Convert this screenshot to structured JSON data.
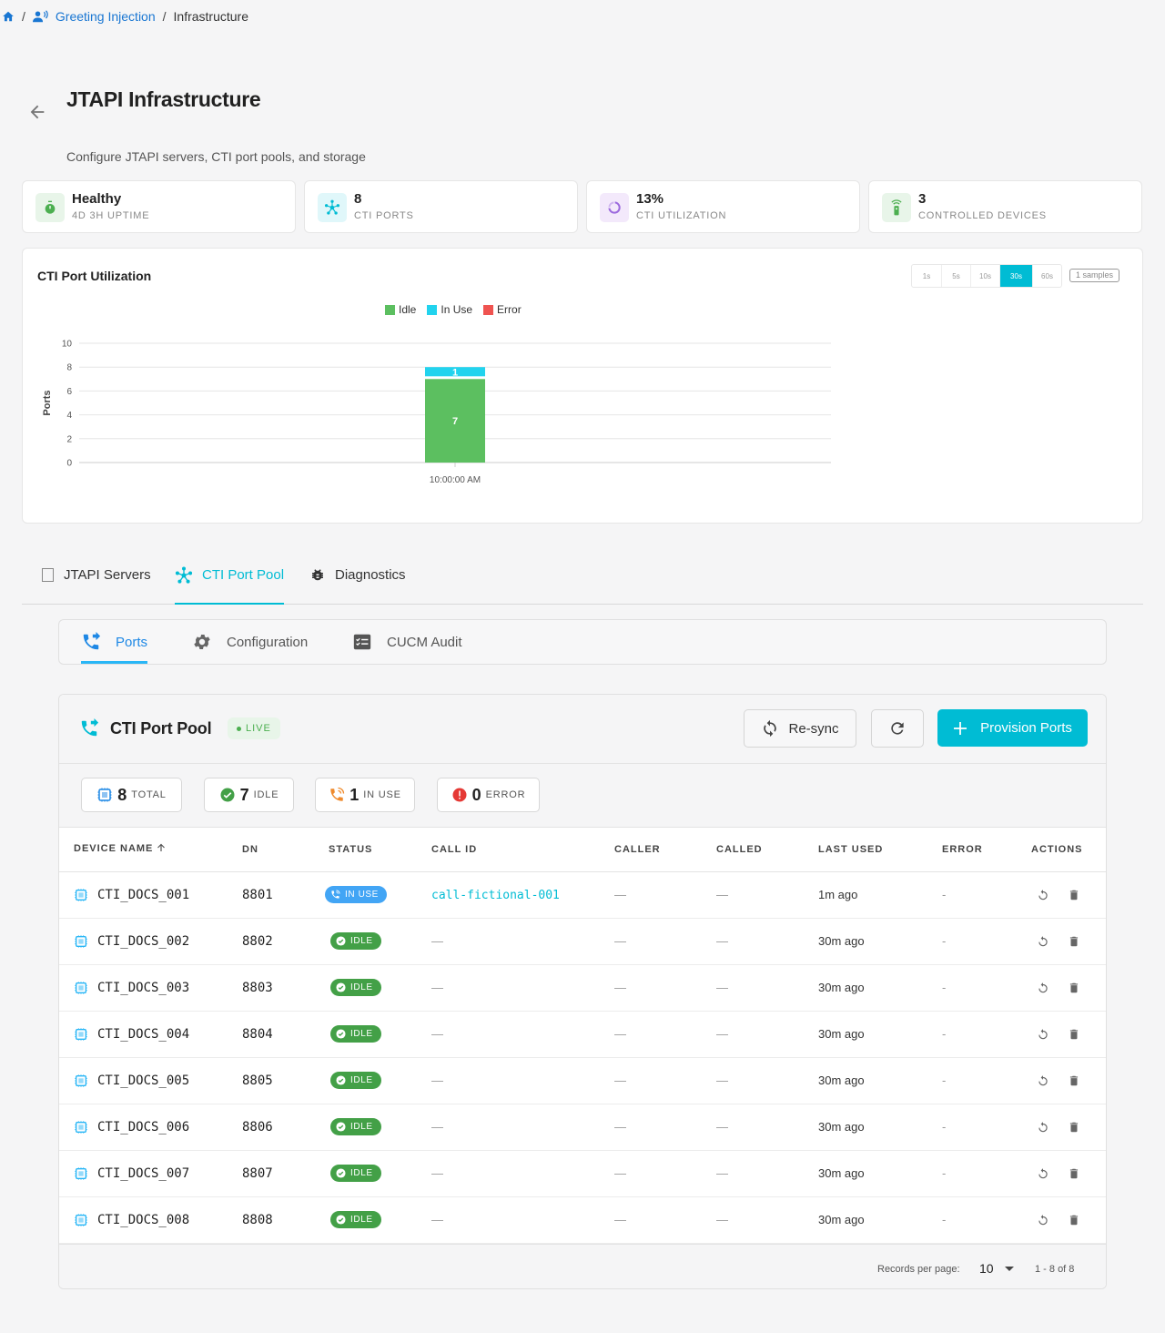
{
  "breadcrumb": {
    "sep": "/",
    "items": [
      "Greeting Injection",
      "Infrastructure"
    ],
    "icons": [
      "home-icon",
      "users-voice-icon"
    ]
  },
  "page": {
    "title": "JTAPI Infrastructure",
    "subtitle": "Configure JTAPI servers, CTI port pools, and storage"
  },
  "stats": [
    {
      "value": "Healthy",
      "label": "4D 3H UPTIME",
      "icon": "timer-icon",
      "color": "#4caf50"
    },
    {
      "value": "8",
      "label": "CTI PORTS",
      "icon": "hub-icon",
      "color": "#00bcd4"
    },
    {
      "value": "13%",
      "label": "CTI UTILIZATION",
      "icon": "ring-icon",
      "color": "#9c6ade"
    },
    {
      "value": "3",
      "label": "CONTROLLED DEVICES",
      "icon": "remote-icon",
      "color": "#4caf50"
    }
  ],
  "chart_card": {
    "title": "CTI Port Utilization",
    "intervals": [
      "1s",
      "5s",
      "10s",
      "30s",
      "60s"
    ],
    "active_interval": "30s",
    "samples": "1 samples"
  },
  "chart_data": {
    "type": "bar",
    "stacked": true,
    "categories": [
      "10:00:00 AM"
    ],
    "series": [
      {
        "name": "Idle",
        "values": [
          7
        ],
        "color": "#5cbf60"
      },
      {
        "name": "In Use",
        "values": [
          1
        ],
        "color": "#22d3ee"
      },
      {
        "name": "Error",
        "values": [
          0
        ],
        "color": "#ef5350"
      }
    ],
    "ylabel": "Ports",
    "ylim": [
      0,
      10
    ],
    "yticks": [
      0,
      2,
      4,
      6,
      8,
      10
    ],
    "grid": true,
    "legend": "top"
  },
  "main_tabs": [
    {
      "label": "JTAPI Servers",
      "icon": "server-icon",
      "active": false
    },
    {
      "label": "CTI Port Pool",
      "icon": "hub-icon",
      "active": true
    },
    {
      "label": "Diagnostics",
      "icon": "bug-icon",
      "active": false
    }
  ],
  "sub_tabs": [
    {
      "label": "Ports",
      "icon": "phone-forward-icon",
      "active": true
    },
    {
      "label": "Configuration",
      "icon": "gear-icon",
      "active": false
    },
    {
      "label": "CUCM Audit",
      "icon": "checklist-icon",
      "active": false
    }
  ],
  "pool": {
    "title": "CTI Port Pool",
    "live": "LIVE",
    "resync": "Re-sync",
    "provision": "Provision Ports",
    "counts": [
      {
        "n": "8",
        "label": "TOTAL",
        "icon": "device-icon"
      },
      {
        "n": "7",
        "label": "IDLE",
        "icon": "check-circle-icon"
      },
      {
        "n": "1",
        "label": "IN USE",
        "icon": "phone-in-talk-icon"
      },
      {
        "n": "0",
        "label": "ERROR",
        "icon": "error-icon"
      }
    ],
    "columns": [
      "DEVICE NAME",
      "DN",
      "STATUS",
      "CALL ID",
      "CALLER",
      "CALLED",
      "LAST USED",
      "ERROR",
      "ACTIONS"
    ],
    "rows": [
      {
        "device": "CTI_DOCS_001",
        "dn": "8801",
        "status": "IN USE",
        "call_id": "call-fictional-001",
        "caller": "—",
        "called": "—",
        "last_used": "1m ago",
        "error": "-"
      },
      {
        "device": "CTI_DOCS_002",
        "dn": "8802",
        "status": "IDLE",
        "call_id": "—",
        "caller": "—",
        "called": "—",
        "last_used": "30m ago",
        "error": "-"
      },
      {
        "device": "CTI_DOCS_003",
        "dn": "8803",
        "status": "IDLE",
        "call_id": "—",
        "caller": "—",
        "called": "—",
        "last_used": "30m ago",
        "error": "-"
      },
      {
        "device": "CTI_DOCS_004",
        "dn": "8804",
        "status": "IDLE",
        "call_id": "—",
        "caller": "—",
        "called": "—",
        "last_used": "30m ago",
        "error": "-"
      },
      {
        "device": "CTI_DOCS_005",
        "dn": "8805",
        "status": "IDLE",
        "call_id": "—",
        "caller": "—",
        "called": "—",
        "last_used": "30m ago",
        "error": "-"
      },
      {
        "device": "CTI_DOCS_006",
        "dn": "8806",
        "status": "IDLE",
        "call_id": "—",
        "caller": "—",
        "called": "—",
        "last_used": "30m ago",
        "error": "-"
      },
      {
        "device": "CTI_DOCS_007",
        "dn": "8807",
        "status": "IDLE",
        "call_id": "—",
        "caller": "—",
        "called": "—",
        "last_used": "30m ago",
        "error": "-"
      },
      {
        "device": "CTI_DOCS_008",
        "dn": "8808",
        "status": "IDLE",
        "call_id": "—",
        "caller": "—",
        "called": "—",
        "last_used": "30m ago",
        "error": "-"
      }
    ],
    "footer": {
      "rpp_label": "Records per page:",
      "rpp_value": "10",
      "range": "1 - 8 of 8"
    }
  }
}
